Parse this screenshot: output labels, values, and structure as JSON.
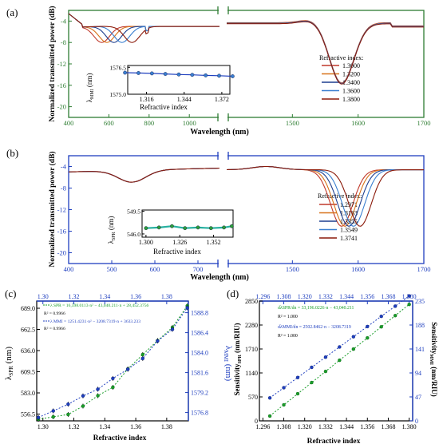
{
  "colors": {
    "panel_a_axis": "#2e7d32",
    "panel_b_axis": "#1f3fbf",
    "spr_series": "#1a9e2a",
    "mmi_series": "#1f3fbf",
    "curve_palette": [
      "#c0392b",
      "#d8731a",
      "#1f3f8f",
      "#3a7fd0",
      "#8b1a0a"
    ],
    "bluegreen_palette": [
      "#c0392b",
      "#d8731a",
      "#1f3f8f",
      "#3a7fd0",
      "#8b1a0a"
    ]
  },
  "panels": {
    "a": {
      "label": "(a)",
      "ylabel": "Normalized transmitted power (dB)",
      "xlabel": "Wavelength (nm)",
      "legend_title": "Refractive index:",
      "inset_ylabel_main": "λ",
      "inset_ylabel_sub": "MMI",
      "inset_ylabel_unit": " (nm)",
      "inset_xlabel": "Refractive index"
    },
    "b": {
      "label": "(b)",
      "ylabel": "Normalized transmitted power (dB)",
      "xlabel": "Wavelength (nm)",
      "legend_title": "Refractive index:",
      "inset_ylabel_main": "λ",
      "inset_ylabel_sub": "SPR",
      "inset_ylabel_unit": " (nm)",
      "inset_xlabel": "Refractive index"
    },
    "c": {
      "label": "(c)",
      "xlabel": "Refractive index",
      "ylabel_left_main": "λ",
      "ylabel_left_sub": "SPR",
      "ylabel_left_unit": " (nm)",
      "ylabel_right_main": "λ",
      "ylabel_right_sub": "MMI",
      "ylabel_right_unit": " (nm)",
      "fit_spr": "λ SPR = 16,598.0113·n² − 43,040.211·n + 28,452.3756",
      "r2_spr": "R² = 0.9966",
      "fit_mmi": "λ MMI = 1251.4231·n² − 3208.7319·n + 3633.233",
      "r2_mmi": "R² = 0.9966"
    },
    "d": {
      "label": "(d)",
      "xlabel": "Refractive index",
      "ylabel_left": "Sensitivity",
      "ylabel_left_sub": "SPR",
      "ylabel_left_unit": " (nm/RIU)",
      "ylabel_right": "Sensitivity",
      "ylabel_right_sub": "MMI",
      "ylabel_right_unit": " (nm/RIU)",
      "fit_spr": "dλSPR/dn = 33,196.0226·n − 43,040.211",
      "r2_spr": "R² = 1.000",
      "fit_mmi": "dλMMI/dn = 2502.8462·n − 3208.7319",
      "r2_mmi": "R² = 1.000"
    }
  },
  "chart_data": [
    {
      "type": "line",
      "panel": "a",
      "xlabel": "Wavelength (nm)",
      "ylabel": "Normalized transmitted power (dB)",
      "xlim": [
        400,
        1700
      ],
      "x_break": [
        1150,
        1400
      ],
      "x_ticks": [
        400,
        600,
        800,
        1000,
        1500,
        1600,
        1700
      ],
      "ylim": [
        -22,
        -2
      ],
      "y_ticks": [
        -4,
        -8,
        -12,
        -16,
        -20
      ],
      "legend_title": "Refractive index:",
      "series": [
        {
          "name": "1.3000",
          "dip_left_nm": 565,
          "dip_left_db": -8.0,
          "dip_right_nm": 1575,
          "dip_right_db": -15.5
        },
        {
          "name": "1.3200",
          "dip_left_nm": 590,
          "dip_left_db": -8.0,
          "dip_right_nm": 1575,
          "dip_right_db": -15.5
        },
        {
          "name": "1.3400",
          "dip_left_nm": 625,
          "dip_left_db": -8.0,
          "dip_right_nm": 1575,
          "dip_right_db": -15.5
        },
        {
          "name": "1.3600",
          "dip_left_nm": 665,
          "dip_left_db": -8.0,
          "dip_right_nm": 1575,
          "dip_right_db": -15.5
        },
        {
          "name": "1.3800",
          "dip_left_nm": 715,
          "dip_left_db": -8.0,
          "dip_right_nm": 1575,
          "dip_right_db": -15.5
        }
      ],
      "inset": {
        "xlabel": "Refractive index",
        "xlim": [
          1.302,
          1.378
        ],
        "x_ticks": [
          "1.316",
          "1.344",
          "1.372"
        ],
        "ylim": [
          1575.0,
          1576.6
        ],
        "y_ticks": [
          "1575.0",
          "1576.5"
        ],
        "x": [
          1.3,
          1.31,
          1.32,
          1.33,
          1.34,
          1.35,
          1.36,
          1.37,
          1.38
        ],
        "y": [
          1576.2,
          1576.18,
          1576.16,
          1576.13,
          1576.1,
          1576.08,
          1576.05,
          1576.03,
          1576.0
        ]
      }
    },
    {
      "type": "line",
      "panel": "b",
      "xlabel": "Wavelength (nm)",
      "ylabel": "Normalized transmitted power (dB)",
      "xlim": [
        400,
        1700
      ],
      "x_break": [
        750,
        1400
      ],
      "x_ticks": [
        400,
        500,
        600,
        700,
        1500,
        1600,
        1700
      ],
      "ylim": [
        -22,
        -2
      ],
      "y_ticks": [
        -4,
        -8,
        -12,
        -16,
        -20
      ],
      "legend_title": "Refractive index:",
      "series": [
        {
          "name": "1.2971",
          "dip_right_nm": 1575
        },
        {
          "name": "1.3163",
          "dip_right_nm": 1580
        },
        {
          "name": "1.3355",
          "dip_right_nm": 1586
        },
        {
          "name": "1.3549",
          "dip_right_nm": 1593
        },
        {
          "name": "1.3741",
          "dip_right_nm": 1603
        }
      ],
      "inset": {
        "xlabel": "Refractive index",
        "xlim": [
          1.297,
          1.367
        ],
        "x_ticks": [
          "1.300",
          "1.326",
          "1.352"
        ],
        "ylim": [
          545.5,
          549.7
        ],
        "y_ticks": [
          "549.5",
          "546.0"
        ],
        "x": [
          1.3,
          1.31,
          1.32,
          1.33,
          1.34,
          1.35,
          1.36,
          1.366
        ],
        "y": [
          546.9,
          547.0,
          547.2,
          546.9,
          547.0,
          546.9,
          547.0,
          547.2
        ]
      }
    },
    {
      "type": "scatter",
      "panel": "c",
      "xlabel": "Refractive index",
      "xlim": [
        1.296,
        1.394
      ],
      "x_ticks": [
        1.3,
        1.32,
        1.34,
        1.36,
        1.38
      ],
      "top_ticks": [
        1.3,
        1.32,
        1.34,
        1.36,
        1.38
      ],
      "left_ylabel": "λSPR (nm)",
      "left_ylim": [
        548,
        698
      ],
      "left_ticks": [
        556.5,
        583.0,
        609.5,
        636.0,
        662.5,
        689.0
      ],
      "right_ylabel": "λMMI (nm)",
      "right_ylim": [
        1575.8,
        1590.2
      ],
      "right_ticks": [
        1576.8,
        1579.2,
        1581.6,
        1584.0,
        1586.4,
        1588.8
      ],
      "series": [
        {
          "name": "SPR",
          "x": [
            1.2971,
            1.3067,
            1.3163,
            1.3259,
            1.3355,
            1.3452,
            1.3549,
            1.3645,
            1.3741,
            1.3837,
            1.3933
          ],
          "y": [
            550.0,
            553.0,
            556.0,
            566.5,
            579.5,
            590.0,
            613.0,
            631.0,
            648.5,
            665.0,
            692.0
          ]
        },
        {
          "name": "MMI",
          "x": [
            1.2971,
            1.3067,
            1.3163,
            1.3259,
            1.3355,
            1.3452,
            1.3549,
            1.3645,
            1.3741,
            1.3837,
            1.3933
          ],
          "y": [
            1576.2,
            1577.0,
            1577.8,
            1578.8,
            1579.6,
            1580.9,
            1582.0,
            1583.3,
            1585.4,
            1586.8,
            1589.4
          ]
        }
      ]
    },
    {
      "type": "scatter",
      "panel": "d",
      "xlabel": "Refractive index",
      "xlim": [
        1.294,
        1.382
      ],
      "x_ticks": [
        1.296,
        1.308,
        1.32,
        1.332,
        1.344,
        1.356,
        1.368,
        1.38
      ],
      "top_ticks": [
        1.296,
        1.308,
        1.32,
        1.332,
        1.344,
        1.356,
        1.368,
        1.38
      ],
      "left_ylabel": "SensitivitySPR (nm/RIU)",
      "left_ylim": [
        0,
        2850
      ],
      "left_ticks": [
        0,
        570,
        1140,
        1710,
        2280,
        2850
      ],
      "right_ylabel": "SensitivityMMI (nm/RIU)",
      "right_ylim": [
        0,
        235
      ],
      "right_ticks": [
        0,
        47,
        94,
        141,
        188,
        235
      ],
      "series": [
        {
          "name": "SPR",
          "x": [
            1.3,
            1.308,
            1.316,
            1.324,
            1.332,
            1.34,
            1.348,
            1.356,
            1.364,
            1.372,
            1.38
          ],
          "y": [
            115,
            380,
            645,
            911,
            1176,
            1442,
            1707,
            1973,
            2238,
            2504,
            2770
          ]
        },
        {
          "name": "MMI",
          "x": [
            1.3,
            1.308,
            1.316,
            1.324,
            1.332,
            1.34,
            1.348,
            1.356,
            1.364,
            1.372,
            1.38
          ],
          "y": [
            45,
            65,
            85,
            105,
            125,
            145,
            165,
            185,
            205,
            225,
            245
          ]
        }
      ]
    }
  ]
}
